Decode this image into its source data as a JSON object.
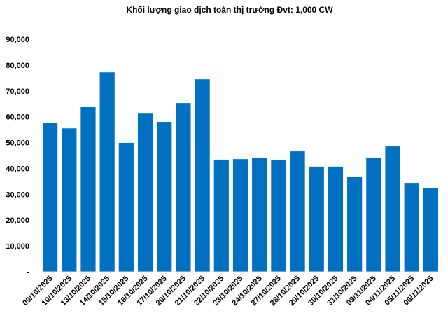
{
  "chart_data": {
    "type": "bar",
    "title": "Khối lượng giao dịch toàn thị trường Đvt: 1,000 CW",
    "xlabel": "",
    "ylabel": "",
    "ylim": [
      0,
      90000
    ],
    "yticks": [
      0,
      10000,
      20000,
      30000,
      40000,
      50000,
      60000,
      70000,
      80000,
      90000
    ],
    "ytick_labels": [
      "-",
      "10,000",
      "20,000",
      "30,000",
      "40,000",
      "50,000",
      "60,000",
      "70,000",
      "80,000",
      "90,000"
    ],
    "grid": false,
    "legend": "none",
    "color": "#0070C0",
    "categories": [
      "09/10/2025",
      "10/10/2025",
      "13/10/2025",
      "14/10/2025",
      "15/10/2025",
      "16/10/2025",
      "17/10/2025",
      "20/10/2025",
      "21/10/2025",
      "22/10/2025",
      "23/10/2025",
      "24/10/2025",
      "27/10/2025",
      "28/10/2025",
      "29/10/2025",
      "30/10/2025",
      "31/10/2025",
      "03/11/2025",
      "04/11/2025",
      "05/11/2025",
      "06/11/2025"
    ],
    "values": [
      57500,
      55500,
      63700,
      77200,
      49900,
      61200,
      58000,
      65300,
      74500,
      43400,
      43600,
      44200,
      43100,
      46600,
      40700,
      40700,
      36600,
      44200,
      48500,
      34400,
      32500
    ]
  }
}
